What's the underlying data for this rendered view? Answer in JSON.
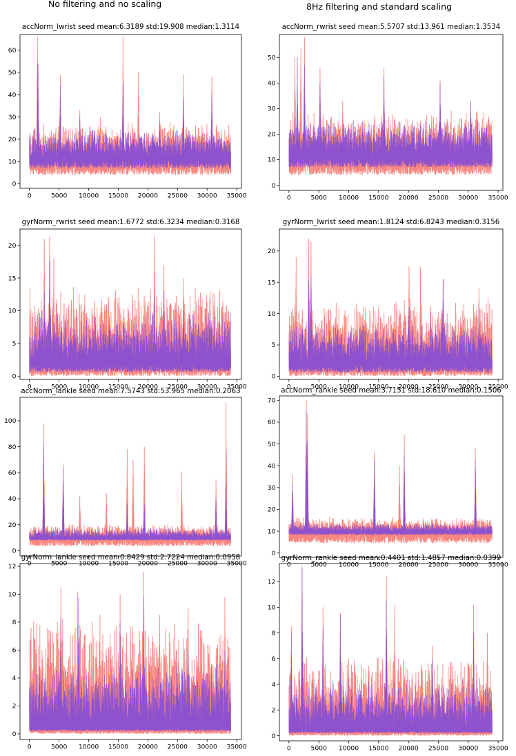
{
  "columns": {
    "left_title": "No filtering and no scaling",
    "right_title": "8Hz filtering and standard scaling"
  },
  "colors": {
    "raw": "#f88078",
    "processed": "#7b49dc"
  },
  "chart_data": [
    {
      "type": "line",
      "title": "accNorm_lwrist seed mean:6.3189 std:19.908 median:1.3114",
      "xlim": [
        -1600,
        35800
      ],
      "ylim": [
        -2,
        67
      ],
      "xticks": [
        0,
        5000,
        10000,
        15000,
        20000,
        25000,
        30000,
        35000
      ],
      "yticks": [
        0,
        10,
        20,
        30,
        40,
        50,
        60
      ],
      "series": [
        {
          "color": "#f88078",
          "baseline": 10,
          "lower_floor": 0,
          "low_spread": 6,
          "high_spread": 13,
          "max_y": 66,
          "peaks": [
            [
              1350,
              66
            ],
            [
              1450,
              54
            ],
            [
              5200,
              49
            ],
            [
              8500,
              33
            ],
            [
              15800,
              66
            ],
            [
              18400,
              50
            ],
            [
              26000,
              49
            ],
            [
              30800,
              48
            ],
            [
              12000,
              30
            ],
            [
              22000,
              32
            ]
          ]
        },
        {
          "color": "#7b49dc",
          "baseline": 11,
          "lower_floor": 2.5,
          "low_spread": 4,
          "high_spread": 10,
          "max_y": 66,
          "peaks": [
            [
              1400,
              54
            ],
            [
              5200,
              44
            ],
            [
              15800,
              45
            ],
            [
              26000,
              38
            ],
            [
              30800,
              39
            ],
            [
              8500,
              30
            ],
            [
              22000,
              28
            ]
          ]
        }
      ]
    },
    {
      "type": "line",
      "title": "accNorm_rwrist seed mean:5.5707 std:13.961 median:1.3534",
      "xlim": [
        -1600,
        35800
      ],
      "ylim": [
        -2,
        59
      ],
      "xticks": [
        0,
        5000,
        10000,
        15000,
        20000,
        25000,
        30000,
        35000
      ],
      "yticks": [
        0,
        10,
        20,
        30,
        40,
        50
      ],
      "series": [
        {
          "color": "#f88078",
          "baseline": 10,
          "lower_floor": 0.5,
          "low_spread": 6,
          "high_spread": 14,
          "max_y": 58,
          "peaks": [
            [
              1000,
              50
            ],
            [
              2000,
              54
            ],
            [
              2600,
              58
            ],
            [
              5200,
              46
            ],
            [
              15900,
              46
            ],
            [
              25300,
              41
            ],
            [
              30400,
              33
            ],
            [
              9000,
              33
            ]
          ]
        },
        {
          "color": "#7b49dc",
          "baseline": 11,
          "lower_floor": 3,
          "low_spread": 4,
          "high_spread": 11,
          "max_y": 58,
          "peaks": [
            [
              1400,
              50
            ],
            [
              2600,
              47
            ],
            [
              5200,
              39
            ],
            [
              15900,
              43
            ],
            [
              25300,
              40
            ],
            [
              30400,
              33
            ]
          ]
        }
      ]
    },
    {
      "type": "line",
      "title": "gyrNorm_rwrist seed mean:1.6772 std:6.3234 median:0.3168",
      "xlim": [
        -1600,
        35800
      ],
      "ylim": [
        -0.5,
        22.5
      ],
      "xticks": [
        0,
        5000,
        10000,
        15000,
        20000,
        25000,
        30000,
        35000
      ],
      "yticks": [
        0,
        5,
        10,
        15,
        20
      ],
      "series": [
        {
          "color": "#f88078",
          "baseline": 1.5,
          "lower_floor": 0,
          "low_spread": 1.5,
          "high_spread": 9,
          "max_y": 22,
          "peaks": [
            [
              2500,
              21
            ],
            [
              3400,
              21.3
            ],
            [
              4100,
              18
            ],
            [
              11000,
              11.5
            ],
            [
              21100,
              21.5
            ],
            [
              22700,
              17
            ],
            [
              30500,
              13
            ],
            [
              26000,
              15
            ],
            [
              16000,
              9
            ],
            [
              8000,
              10
            ]
          ]
        },
        {
          "color": "#7b49dc",
          "baseline": 1.8,
          "lower_floor": 0.5,
          "low_spread": 1.2,
          "high_spread": 6,
          "max_y": 22,
          "peaks": [
            [
              3400,
              17.5
            ],
            [
              2500,
              13
            ],
            [
              21100,
              12
            ],
            [
              22700,
              13
            ],
            [
              26000,
              10
            ],
            [
              30500,
              10
            ]
          ]
        }
      ]
    },
    {
      "type": "line",
      "title": "gyrNorm_lwrist seed mean:1.8124 std:6.8243 median:0.3156",
      "xlim": [
        -1600,
        35800
      ],
      "ylim": [
        -0.5,
        23.5
      ],
      "xticks": [
        0,
        5000,
        10000,
        15000,
        20000,
        25000,
        30000,
        35000
      ],
      "yticks": [
        0,
        5,
        10,
        15,
        20
      ],
      "series": [
        {
          "color": "#f88078",
          "baseline": 1.5,
          "lower_floor": 0,
          "low_spread": 1.5,
          "high_spread": 8,
          "max_y": 22.5,
          "peaks": [
            [
              1200,
              19
            ],
            [
              3300,
              22
            ],
            [
              3700,
              21.5
            ],
            [
              20100,
              17.5
            ],
            [
              22000,
              17.5
            ],
            [
              25800,
              15.5
            ],
            [
              31800,
              14
            ],
            [
              12000,
              10
            ],
            [
              15000,
              11
            ]
          ]
        },
        {
          "color": "#7b49dc",
          "baseline": 1.8,
          "lower_floor": 0.5,
          "low_spread": 1.2,
          "high_spread": 5,
          "max_y": 22.5,
          "peaks": [
            [
              3300,
              15.5
            ],
            [
              3700,
              16
            ],
            [
              20100,
              11
            ],
            [
              25800,
              15.5
            ],
            [
              31800,
              11
            ],
            [
              1200,
              8
            ]
          ]
        }
      ]
    },
    {
      "type": "line",
      "title": "accNorm_lankle seed mean:7.5743 std:53.965 median:0.2063",
      "xlim": [
        -1600,
        35800
      ],
      "ylim": [
        -4,
        118
      ],
      "xticks": [
        0,
        5000,
        10000,
        15000,
        20000,
        25000,
        30000,
        35000
      ],
      "yticks": [
        0,
        20,
        40,
        60,
        80,
        100
      ],
      "series": [
        {
          "color": "#f88078",
          "baseline": 9.5,
          "lower_floor": 0,
          "low_spread": 6,
          "high_spread": 8,
          "max_y": 115,
          "peaks": [
            [
              2400,
              98
            ],
            [
              5700,
              67
            ],
            [
              16500,
              78
            ],
            [
              17500,
              70
            ],
            [
              19400,
              80
            ],
            [
              25700,
              61
            ],
            [
              33200,
              114
            ],
            [
              31500,
              55
            ],
            [
              8500,
              42
            ],
            [
              13000,
              44
            ]
          ]
        },
        {
          "color": "#7b49dc",
          "baseline": 9.5,
          "lower_floor": 7,
          "low_spread": 1.5,
          "high_spread": 6,
          "max_y": 115,
          "peaks": [
            [
              2400,
              80
            ],
            [
              5700,
              63
            ],
            [
              33200,
              50
            ],
            [
              16500,
              36
            ],
            [
              19400,
              36
            ],
            [
              31500,
              38
            ]
          ]
        }
      ]
    },
    {
      "type": "line",
      "title": "accNorm_rankle seed mean:3.7151 std:18.610 median:0.1506",
      "xlim": [
        -1600,
        35800
      ],
      "ylim": [
        -2,
        72
      ],
      "xticks": [
        0,
        5000,
        10000,
        15000,
        20000,
        25000,
        30000,
        35000
      ],
      "yticks": [
        0,
        10,
        20,
        30,
        40,
        50,
        60,
        70
      ],
      "series": [
        {
          "color": "#f88078",
          "baseline": 9.5,
          "lower_floor": 0.5,
          "low_spread": 5,
          "high_spread": 5,
          "max_y": 71,
          "peaks": [
            [
              2900,
              70
            ],
            [
              3100,
              64
            ],
            [
              14300,
              46
            ],
            [
              19300,
              54
            ],
            [
              18500,
              40
            ],
            [
              31200,
              48
            ],
            [
              600,
              36
            ]
          ]
        },
        {
          "color": "#7b49dc",
          "baseline": 9.5,
          "lower_floor": 7.5,
          "low_spread": 1.2,
          "high_spread": 3,
          "max_y": 71,
          "peaks": [
            [
              2900,
              65
            ],
            [
              3100,
              51
            ],
            [
              14300,
              42
            ],
            [
              19300,
              44
            ],
            [
              31200,
              42
            ],
            [
              600,
              32
            ]
          ]
        }
      ]
    },
    {
      "type": "line",
      "title": "gyrNorm_lankle seed mean:0.8429 std:2.7224 median:0.0958",
      "xlim": [
        -1600,
        35800
      ],
      "ylim": [
        -0.4,
        12.2
      ],
      "xticks": [
        0,
        5000,
        10000,
        15000,
        20000,
        25000,
        30000,
        35000
      ],
      "yticks": [
        0,
        2,
        4,
        6,
        8,
        10,
        12
      ],
      "series": [
        {
          "color": "#f88078",
          "baseline": 0.3,
          "lower_floor": 0,
          "low_spread": 0.3,
          "high_spread": 6,
          "max_y": 11.8,
          "peaks": [
            [
              5300,
              10.5
            ],
            [
              8100,
              10.2
            ],
            [
              19300,
              11.6
            ],
            [
              15300,
              10
            ],
            [
              700,
              8
            ],
            [
              26800,
              9
            ],
            [
              33000,
              9.8
            ],
            [
              22000,
              8.5
            ]
          ]
        },
        {
          "color": "#7b49dc",
          "baseline": 0.4,
          "lower_floor": 0.1,
          "low_spread": 0.2,
          "high_spread": 3.5,
          "max_y": 11.8,
          "peaks": [
            [
              8300,
              9.8
            ],
            [
              19300,
              9.8
            ],
            [
              5300,
              8.3
            ],
            [
              15300,
              8
            ],
            [
              26800,
              6
            ],
            [
              33000,
              6
            ]
          ]
        }
      ]
    },
    {
      "type": "line",
      "title": "gyrNorm_rankle seed mean:0.4401 std:1.4857 median:0.0399",
      "xlim": [
        -1600,
        35800
      ],
      "ylim": [
        -0.4,
        13.4
      ],
      "xticks": [
        0,
        5000,
        10000,
        15000,
        20000,
        25000,
        30000,
        35000
      ],
      "yticks": [
        0,
        2,
        4,
        6,
        8,
        10,
        12
      ],
      "series": [
        {
          "color": "#f88078",
          "baseline": 0.3,
          "lower_floor": 0,
          "low_spread": 0.3,
          "high_spread": 4.5,
          "max_y": 13.2,
          "peaks": [
            [
              2200,
              13
            ],
            [
              400,
              8.5
            ],
            [
              5700,
              10
            ],
            [
              8600,
              9.5
            ],
            [
              16300,
              12.4
            ],
            [
              17700,
              10.2
            ],
            [
              30900,
              10.2
            ],
            [
              33200,
              8
            ],
            [
              24000,
              7
            ]
          ]
        },
        {
          "color": "#7b49dc",
          "baseline": 0.4,
          "lower_floor": 0.1,
          "low_spread": 0.2,
          "high_spread": 3,
          "max_y": 13.2,
          "peaks": [
            [
              2200,
              13.2
            ],
            [
              400,
              8
            ],
            [
              5700,
              8.5
            ],
            [
              8600,
              9.4
            ],
            [
              16300,
              10.5
            ],
            [
              30900,
              8
            ],
            [
              24000,
              6
            ]
          ]
        }
      ]
    }
  ]
}
